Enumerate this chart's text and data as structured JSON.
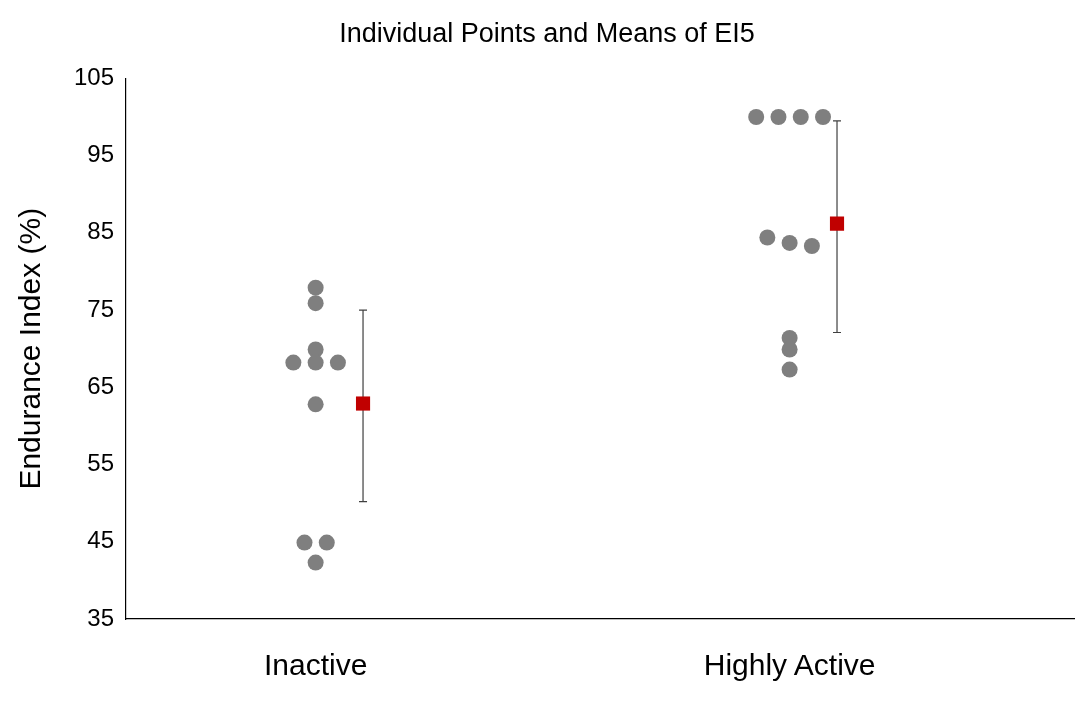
{
  "chart_data": {
    "type": "scatter",
    "title": "Individual Points and Means of EI5",
    "ylabel": "Endurance Index (%)",
    "categories": [
      "Inactive",
      "Highly Active"
    ],
    "series": [
      {
        "marker": "circle",
        "color": "#7f7f7f",
        "x": [
          "Inactive",
          "Inactive",
          "Inactive",
          "Inactive",
          "Inactive",
          "Inactive",
          "Inactive",
          "Inactive",
          "Inactive",
          "Inactive",
          "Highly Active",
          "Highly Active",
          "Highly Active",
          "Highly Active",
          "Highly Active",
          "Highly Active",
          "Highly Active",
          "Highly Active",
          "Highly Active",
          "Highly Active"
        ],
        "values": [
          77.9,
          75.9,
          69.9,
          68.2,
          68.2,
          68.2,
          62.8,
          44.9,
          44.9,
          42.3,
          100,
          100,
          100,
          100,
          84.4,
          83.7,
          83.3,
          71.4,
          69.9,
          67.3
        ]
      },
      {
        "marker": "square",
        "color": "#c00000",
        "x": [
          "Inactive",
          "Highly Active"
        ],
        "values": [
          62.9,
          86.2
        ],
        "errors": [
          [
            50.2,
            75.0
          ],
          [
            72.1,
            99.5
          ]
        ]
      }
    ],
    "ylim": [
      35,
      105
    ],
    "yticks": [
      35,
      45,
      55,
      65,
      75,
      85,
      95,
      105
    ],
    "grid": false,
    "legend": false
  }
}
